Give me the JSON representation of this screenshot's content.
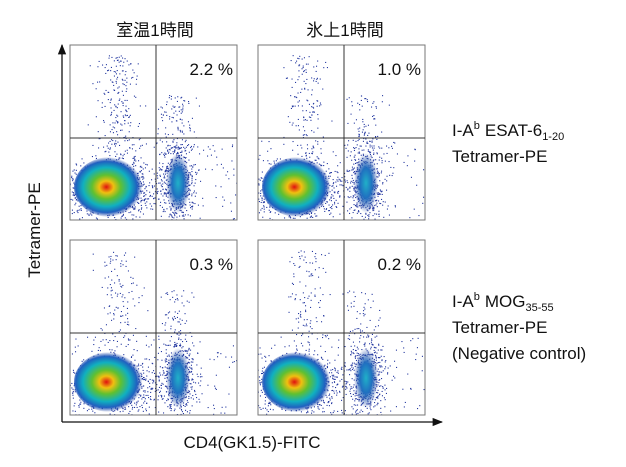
{
  "columns": [
    "室温1時間",
    "氷上1時間"
  ],
  "rows": [
    {
      "label": {
        "prefix": "I-A",
        "sup": "b",
        "name": "ESAT-6",
        "sub": "1-20"
      },
      "lines": [
        "Tetramer-PE"
      ],
      "panels": [
        "2.2 %",
        "1.0 %"
      ]
    },
    {
      "label": {
        "prefix": "I-A",
        "sup": "b",
        "name": "MOG",
        "sub": "35-55"
      },
      "lines": [
        "Tetramer-PE",
        "(Negative control)"
      ],
      "panels": [
        "0.3 %",
        "0.2 %"
      ]
    }
  ],
  "axes": {
    "x_label": "CD4(GK1.5)-FITC",
    "y_label": "Tetramer-PE"
  }
}
